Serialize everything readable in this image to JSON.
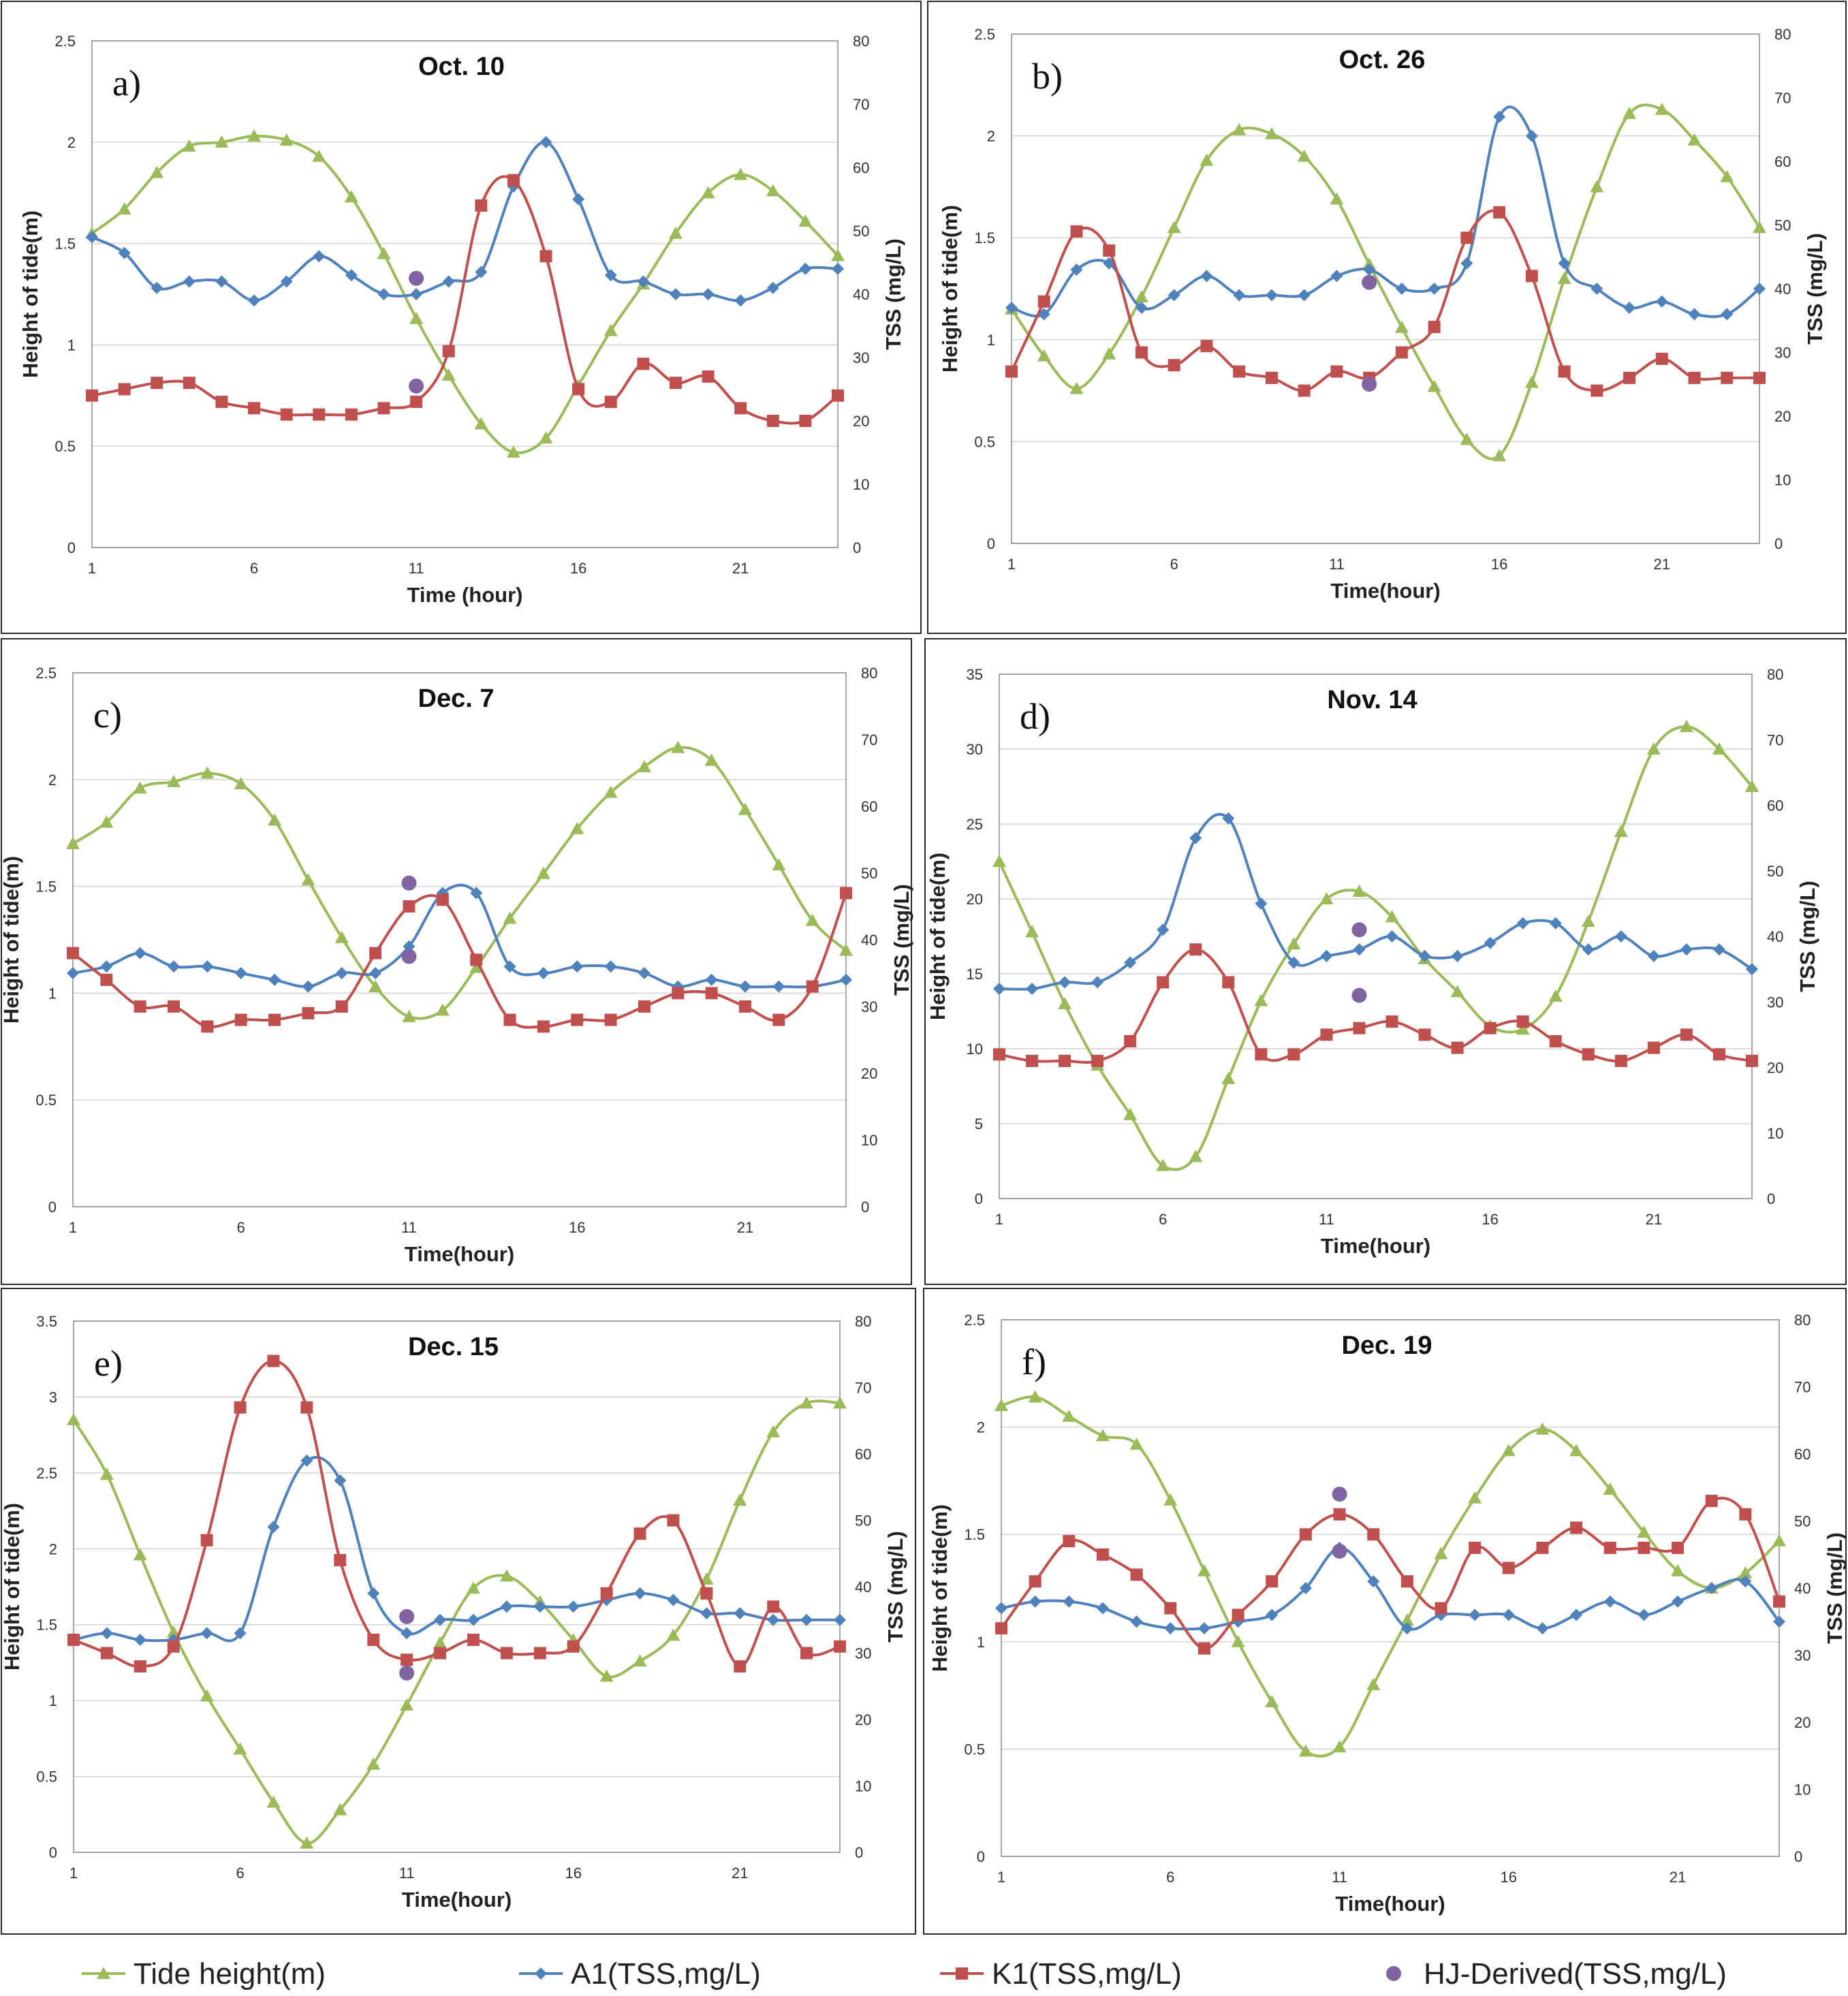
{
  "colors": {
    "tide": "#9BBB59",
    "a1": "#4F81BD",
    "k1": "#C0504D",
    "hj": "#8064A2",
    "grid": "#d2d2d2",
    "frame": "#555555"
  },
  "legend": {
    "tide": "Tide height(m)",
    "a1": "A1(TSS,mg/L)",
    "k1": "K1(TSS,mg/L)",
    "hj": "HJ-Derived(TSS,mg/L)"
  },
  "chart_data": [
    {
      "type": "line",
      "panel": "a)",
      "title": "Oct. 10",
      "xlabel": "Time (hour)",
      "ylabel": "Height of tide(m)",
      "y2label": "TSS (mg/L)",
      "xlim": [
        1,
        24
      ],
      "xticks": [
        "1",
        "6",
        "11",
        "16",
        "21"
      ],
      "ylim": [
        0,
        2.5
      ],
      "yticks": [
        "0",
        "0.5",
        "1",
        "1.5",
        "2",
        "2.5"
      ],
      "y2lim": [
        0,
        80
      ],
      "y2ticks": [
        "0",
        "10",
        "20",
        "30",
        "40",
        "50",
        "60",
        "70",
        "80"
      ],
      "series": [
        {
          "name": "Tide height(m)",
          "axis": "left",
          "values": [
            1.55,
            1.67,
            1.85,
            1.98,
            2.0,
            2.03,
            2.01,
            1.93,
            1.73,
            1.45,
            1.13,
            0.85,
            0.61,
            0.47,
            0.54,
            0.8,
            1.07,
            1.3,
            1.55,
            1.75,
            1.84,
            1.76,
            1.61,
            1.44
          ]
        },
        {
          "name": "A1(TSS,mg/L)",
          "axis": "right",
          "values": [
            49,
            46.5,
            41,
            42,
            42,
            39,
            42,
            46,
            43,
            40,
            40,
            42,
            43.5,
            57,
            64,
            55,
            43,
            42,
            40,
            40,
            39,
            41,
            44,
            44
          ]
        },
        {
          "name": "K1(TSS,mg/L)",
          "axis": "right",
          "values": [
            24,
            25,
            26,
            26,
            23,
            22,
            21,
            21,
            21,
            22,
            23,
            31,
            54,
            58,
            46,
            25,
            23,
            29,
            26,
            27,
            22,
            20,
            20,
            24
          ]
        }
      ],
      "hj_points": [
        {
          "x": 11,
          "y": 42.5
        },
        {
          "x": 11,
          "y": 25.5
        }
      ]
    },
    {
      "type": "line",
      "panel": "b)",
      "title": "Oct. 26",
      "xlabel": "Time(hour)",
      "ylabel": "Height of tide(m)",
      "y2label": "TSS (mg/L)",
      "xlim": [
        1,
        24
      ],
      "xticks": [
        "1",
        "6",
        "11",
        "16",
        "21"
      ],
      "ylim": [
        0,
        2.5
      ],
      "yticks": [
        "0",
        "0.5",
        "1",
        "1.5",
        "2",
        "2.5"
      ],
      "y2lim": [
        0,
        80
      ],
      "y2ticks": [
        "0",
        "10",
        "20",
        "30",
        "40",
        "50",
        "60",
        "70",
        "80"
      ],
      "series": [
        {
          "name": "Tide height(m)",
          "axis": "left",
          "values": [
            1.15,
            0.92,
            0.76,
            0.93,
            1.21,
            1.55,
            1.88,
            2.03,
            2.01,
            1.9,
            1.69,
            1.37,
            1.06,
            0.77,
            0.51,
            0.43,
            0.79,
            1.3,
            1.75,
            2.11,
            2.13,
            1.98,
            1.8,
            1.55
          ]
        },
        {
          "name": "A1(TSS,mg/L)",
          "axis": "right",
          "values": [
            37,
            36,
            43,
            44,
            37,
            39,
            42,
            39,
            39,
            39,
            42,
            43,
            40,
            40,
            44,
            67,
            64,
            44,
            40,
            37,
            38,
            36,
            36,
            40
          ]
        },
        {
          "name": "K1(TSS,mg/L)",
          "axis": "right",
          "values": [
            27,
            38,
            49,
            46,
            30,
            28,
            31,
            27,
            26,
            24,
            27,
            26,
            30,
            34,
            48,
            52,
            42,
            27,
            24,
            26,
            29,
            26,
            26,
            26
          ]
        }
      ],
      "hj_points": [
        {
          "x": 12,
          "y": 41
        },
        {
          "x": 12,
          "y": 25
        }
      ]
    },
    {
      "type": "line",
      "panel": "c)",
      "title": "Dec. 7",
      "xlabel": "Time(hour)",
      "ylabel": "Height of tide(m)",
      "y2label": "TSS (mg/L)",
      "xlim": [
        1,
        24
      ],
      "xticks": [
        "1",
        "6",
        "11",
        "16",
        "21"
      ],
      "ylim": [
        0,
        2.5
      ],
      "yticks": [
        "0",
        "0.5",
        "1",
        "1.5",
        "2",
        "2.5"
      ],
      "y2lim": [
        0,
        80
      ],
      "y2ticks": [
        "0",
        "10",
        "20",
        "30",
        "40",
        "50",
        "60",
        "70",
        "80"
      ],
      "series": [
        {
          "name": "Tide height(m)",
          "axis": "left",
          "values": [
            1.7,
            1.8,
            1.96,
            1.99,
            2.03,
            1.98,
            1.81,
            1.53,
            1.26,
            1.03,
            0.89,
            0.92,
            1.12,
            1.35,
            1.56,
            1.77,
            1.94,
            2.06,
            2.15,
            2.09,
            1.86,
            1.6,
            1.34,
            1.2
          ]
        },
        {
          "name": "A1(TSS,mg/L)",
          "axis": "right",
          "values": [
            35,
            36,
            38,
            36,
            36,
            35,
            34,
            33,
            35,
            35,
            39,
            47,
            47,
            36,
            35,
            36,
            36,
            35,
            33,
            34,
            33,
            33,
            33,
            34
          ]
        },
        {
          "name": "K1(TSS,mg/L)",
          "axis": "right",
          "values": [
            38,
            34,
            30,
            30,
            27,
            28,
            28,
            29,
            30,
            38,
            45,
            46,
            37,
            28,
            27,
            28,
            28,
            30,
            32,
            32,
            30,
            28,
            33,
            47
          ]
        }
      ],
      "hj_points": [
        {
          "x": 11,
          "y": 48.5
        },
        {
          "x": 11,
          "y": 37.5
        }
      ]
    },
    {
      "type": "line",
      "panel": "d)",
      "title": "Nov. 14",
      "xlabel": "Time(hour)",
      "ylabel": "Height of tide(m)",
      "y2label": "TSS (mg/L)",
      "xlim": [
        1,
        24
      ],
      "xticks": [
        "1",
        "6",
        "11",
        "16",
        "21"
      ],
      "ylim": [
        0,
        35
      ],
      "yticks": [
        "0",
        "5",
        "10",
        "15",
        "20",
        "25",
        "30",
        "35"
      ],
      "y2lim": [
        0,
        80
      ],
      "y2ticks": [
        "0",
        "10",
        "20",
        "30",
        "40",
        "50",
        "60",
        "70",
        "80"
      ],
      "series": [
        {
          "name": "Tide height(m)",
          "axis": "left",
          "values": [
            22.5,
            17.8,
            13.0,
            8.9,
            5.6,
            2.2,
            2.8,
            8.0,
            13.2,
            17.0,
            20.0,
            20.5,
            18.8,
            16.0,
            13.8,
            11.5,
            11.3,
            13.5,
            18.5,
            24.5,
            30.0,
            31.5,
            30.0,
            27.5
          ]
        },
        {
          "name": "A1(TSS,mg/L)",
          "axis": "right",
          "values": [
            32,
            32,
            33,
            33,
            36,
            41,
            55,
            58,
            45,
            36,
            37,
            38,
            40,
            37,
            37,
            39,
            42,
            42,
            38,
            40,
            37,
            38,
            38,
            35
          ]
        },
        {
          "name": "K1(TSS,mg/L)",
          "axis": "right",
          "values": [
            22,
            21,
            21,
            21,
            24,
            33,
            38,
            33,
            22,
            22,
            25,
            26,
            27,
            25,
            23,
            26,
            27,
            24,
            22,
            21,
            23,
            25,
            22,
            21
          ]
        }
      ],
      "hj_points": [
        {
          "x": 12,
          "y": 41
        },
        {
          "x": 12,
          "y": 31
        }
      ]
    },
    {
      "type": "line",
      "panel": "e)",
      "title": "Dec. 15",
      "xlabel": "Time(hour)",
      "ylabel": "Height of tide(m)",
      "y2label": "TSS (mg/L)",
      "xlim": [
        1,
        24
      ],
      "xticks": [
        "1",
        "6",
        "11",
        "16",
        "21"
      ],
      "ylim": [
        0,
        3.5
      ],
      "yticks": [
        "0",
        "0.5",
        "1",
        "1.5",
        "2",
        "2.5",
        "3",
        "3.5"
      ],
      "y2lim": [
        0,
        80
      ],
      "y2ticks": [
        "0",
        "10",
        "20",
        "30",
        "40",
        "50",
        "60",
        "70",
        "80"
      ],
      "series": [
        {
          "name": "Tide height(m)",
          "axis": "left",
          "values": [
            2.85,
            2.49,
            1.96,
            1.45,
            1.03,
            0.68,
            0.33,
            0.06,
            0.28,
            0.58,
            0.97,
            1.38,
            1.74,
            1.82,
            1.65,
            1.4,
            1.16,
            1.26,
            1.43,
            1.8,
            2.32,
            2.77,
            2.96,
            2.96
          ]
        },
        {
          "name": "A1(TSS,mg/L)",
          "axis": "right",
          "values": [
            32,
            33,
            32,
            32,
            33,
            33,
            49,
            59,
            56,
            39,
            33,
            35,
            35,
            37,
            37,
            37,
            38,
            39,
            38,
            36,
            36,
            35,
            35,
            35
          ]
        },
        {
          "name": "K1(TSS,mg/L)",
          "axis": "right",
          "values": [
            32,
            30,
            28,
            31,
            47,
            67,
            74,
            67,
            44,
            32,
            29,
            30,
            32,
            30,
            30,
            31,
            39,
            48,
            50,
            39,
            28,
            37,
            30,
            31
          ]
        }
      ],
      "hj_points": [
        {
          "x": 11,
          "y": 35.5
        },
        {
          "x": 11,
          "y": 27
        }
      ]
    },
    {
      "type": "line",
      "panel": "f)",
      "title": "Dec. 19",
      "xlabel": "Time(hour)",
      "ylabel": "Height of tide(m)",
      "y2label": "TSS (mg/L)",
      "xlim": [
        1,
        24
      ],
      "xticks": [
        "1",
        "6",
        "11",
        "16",
        "21"
      ],
      "ylim": [
        0,
        2.5
      ],
      "yticks": [
        "0",
        "0.5",
        "1",
        "1.5",
        "2",
        "2.5"
      ],
      "y2lim": [
        0,
        80
      ],
      "y2ticks": [
        "0",
        "10",
        "20",
        "30",
        "40",
        "50",
        "60",
        "70",
        "80"
      ],
      "series": [
        {
          "name": "Tide height(m)",
          "axis": "left",
          "values": [
            2.1,
            2.14,
            2.05,
            1.96,
            1.92,
            1.66,
            1.33,
            1.0,
            0.72,
            0.49,
            0.51,
            0.8,
            1.1,
            1.41,
            1.67,
            1.89,
            1.99,
            1.89,
            1.71,
            1.51,
            1.33,
            1.25,
            1.32,
            1.47
          ]
        },
        {
          "name": "A1(TSS,mg/L)",
          "axis": "right",
          "values": [
            37,
            38,
            38,
            37,
            35,
            34,
            34,
            35,
            36,
            40,
            46,
            41,
            34,
            36,
            36,
            36,
            34,
            36,
            38,
            36,
            38,
            40,
            41,
            35
          ]
        },
        {
          "name": "K1(TSS,mg/L)",
          "axis": "right",
          "values": [
            34,
            41,
            47,
            45,
            42,
            37,
            31,
            36,
            41,
            48,
            51,
            48,
            41,
            37,
            46,
            43,
            46,
            49,
            46,
            46,
            46,
            53,
            51,
            38
          ]
        }
      ],
      "hj_points": [
        {
          "x": 11,
          "y": 54
        },
        {
          "x": 11,
          "y": 45.5
        }
      ]
    }
  ]
}
